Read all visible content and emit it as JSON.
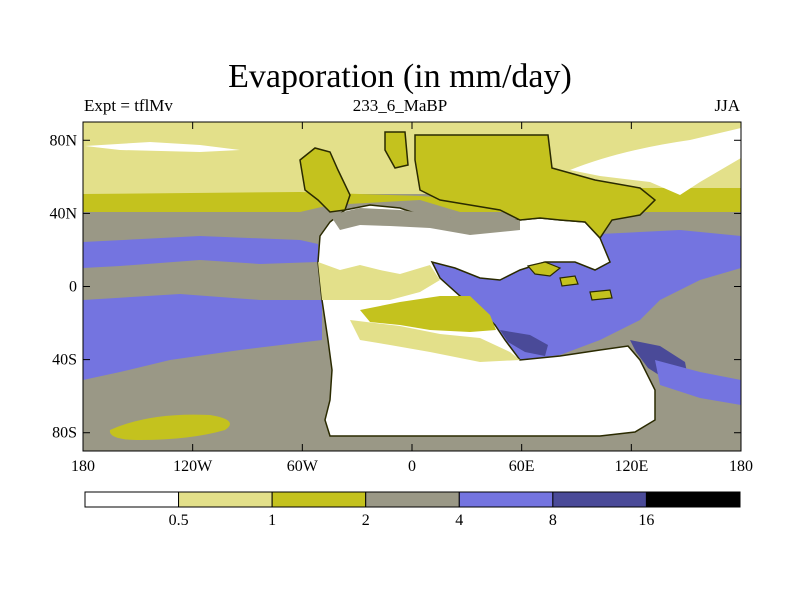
{
  "title": "Evaporation (in mm/day)",
  "subtitle_left": "Expt = tflMv",
  "subtitle_center": "233_6_MaBP",
  "subtitle_right": "JJA",
  "lon_ticks": [
    "180",
    "120W",
    "60W",
    "0",
    "60E",
    "120E",
    "180"
  ],
  "lat_ticks": [
    "80N",
    "40N",
    "0",
    "40S",
    "80S"
  ],
  "colorbar": {
    "colors": [
      "#ffffff",
      "#e3e08a",
      "#c4c21e",
      "#9a9886",
      "#7474e0",
      "#4a4a98",
      "#000000"
    ],
    "labels": [
      "0.5",
      "1",
      "2",
      "4",
      "8",
      "16"
    ]
  },
  "chart_data": {
    "type": "heatmap",
    "title": "Evaporation (in mm/day)",
    "variable": "Evaporation",
    "units": "mm/day",
    "experiment": "tflMv",
    "period": "233_6_MaBP",
    "season": "JJA",
    "x_range": [
      -180,
      180
    ],
    "y_range": [
      -90,
      90
    ],
    "levels": [
      0.5,
      1,
      2,
      4,
      8,
      16
    ]
  }
}
